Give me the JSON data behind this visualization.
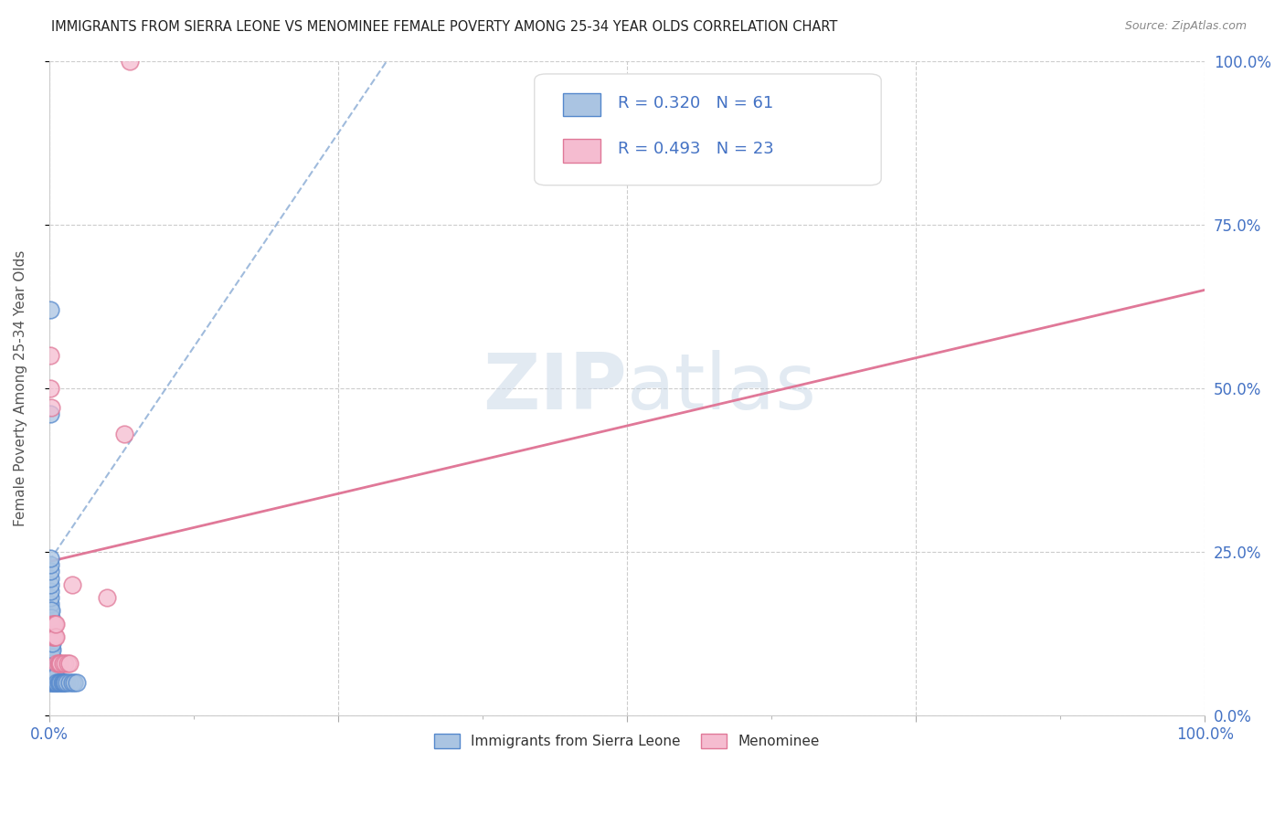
{
  "title": "IMMIGRANTS FROM SIERRA LEONE VS MENOMINEE FEMALE POVERTY AMONG 25-34 YEAR OLDS CORRELATION CHART",
  "source": "Source: ZipAtlas.com",
  "ylabel": "Female Poverty Among 25-34 Year Olds",
  "blue_R": 0.32,
  "blue_N": 61,
  "pink_R": 0.493,
  "pink_N": 23,
  "blue_color": "#aac4e2",
  "blue_edge_color": "#5588cc",
  "pink_color": "#f5bcd0",
  "pink_edge_color": "#e07898",
  "blue_line_color": "#88aad4",
  "pink_line_color": "#e07898",
  "watermark_zip": "ZIP",
  "watermark_atlas": "atlas",
  "legend_label_blue": "Immigrants from Sierra Leone",
  "legend_label_pink": "Menominee",
  "blue_scatter_x": [
    0.001,
    0.001,
    0.001,
    0.001,
    0.001,
    0.001,
    0.001,
    0.001,
    0.001,
    0.001,
    0.001,
    0.001,
    0.001,
    0.001,
    0.001,
    0.001,
    0.001,
    0.001,
    0.001,
    0.001,
    0.002,
    0.002,
    0.002,
    0.002,
    0.002,
    0.002,
    0.002,
    0.002,
    0.002,
    0.002,
    0.002,
    0.002,
    0.003,
    0.003,
    0.003,
    0.003,
    0.003,
    0.003,
    0.003,
    0.004,
    0.004,
    0.004,
    0.005,
    0.005,
    0.006,
    0.006,
    0.007,
    0.008,
    0.009,
    0.01,
    0.011,
    0.012,
    0.013,
    0.014,
    0.015,
    0.018,
    0.02,
    0.022,
    0.024,
    0.001,
    0.001
  ],
  "blue_scatter_y": [
    0.05,
    0.06,
    0.07,
    0.08,
    0.09,
    0.1,
    0.11,
    0.12,
    0.13,
    0.14,
    0.15,
    0.16,
    0.17,
    0.18,
    0.19,
    0.2,
    0.21,
    0.22,
    0.23,
    0.24,
    0.05,
    0.06,
    0.07,
    0.08,
    0.09,
    0.1,
    0.11,
    0.12,
    0.13,
    0.14,
    0.15,
    0.16,
    0.05,
    0.06,
    0.07,
    0.08,
    0.09,
    0.1,
    0.11,
    0.05,
    0.06,
    0.07,
    0.05,
    0.06,
    0.05,
    0.06,
    0.05,
    0.05,
    0.05,
    0.05,
    0.05,
    0.05,
    0.05,
    0.05,
    0.05,
    0.05,
    0.05,
    0.05,
    0.05,
    0.46,
    0.62
  ],
  "pink_scatter_x": [
    0.001,
    0.001,
    0.002,
    0.003,
    0.003,
    0.004,
    0.004,
    0.005,
    0.005,
    0.006,
    0.006,
    0.007,
    0.008,
    0.009,
    0.01,
    0.012,
    0.014,
    0.016,
    0.018,
    0.02,
    0.05,
    0.065,
    0.07
  ],
  "pink_scatter_y": [
    0.5,
    0.55,
    0.47,
    0.12,
    0.14,
    0.12,
    0.14,
    0.12,
    0.14,
    0.12,
    0.14,
    0.08,
    0.08,
    0.08,
    0.08,
    0.08,
    0.08,
    0.08,
    0.08,
    0.2,
    0.18,
    0.43,
    1.0
  ],
  "blue_line_x": [
    0.0,
    0.3
  ],
  "blue_line_y": [
    0.235,
    1.02
  ],
  "pink_line_x": [
    0.0,
    1.0
  ],
  "pink_line_y": [
    0.235,
    0.65
  ],
  "xlim": [
    0.0,
    1.0
  ],
  "ylim": [
    0.0,
    1.0
  ],
  "xtick_positions": [
    0.0,
    0.25,
    0.5,
    0.75,
    1.0
  ],
  "ytick_positions": [
    0.0,
    0.25,
    0.5,
    0.75,
    1.0
  ],
  "xtick_labels": [
    "0.0%",
    "",
    "",
    "",
    "100.0%"
  ],
  "ytick_labels_right": [
    "0.0%",
    "25.0%",
    "50.0%",
    "75.0%",
    "100.0%"
  ]
}
